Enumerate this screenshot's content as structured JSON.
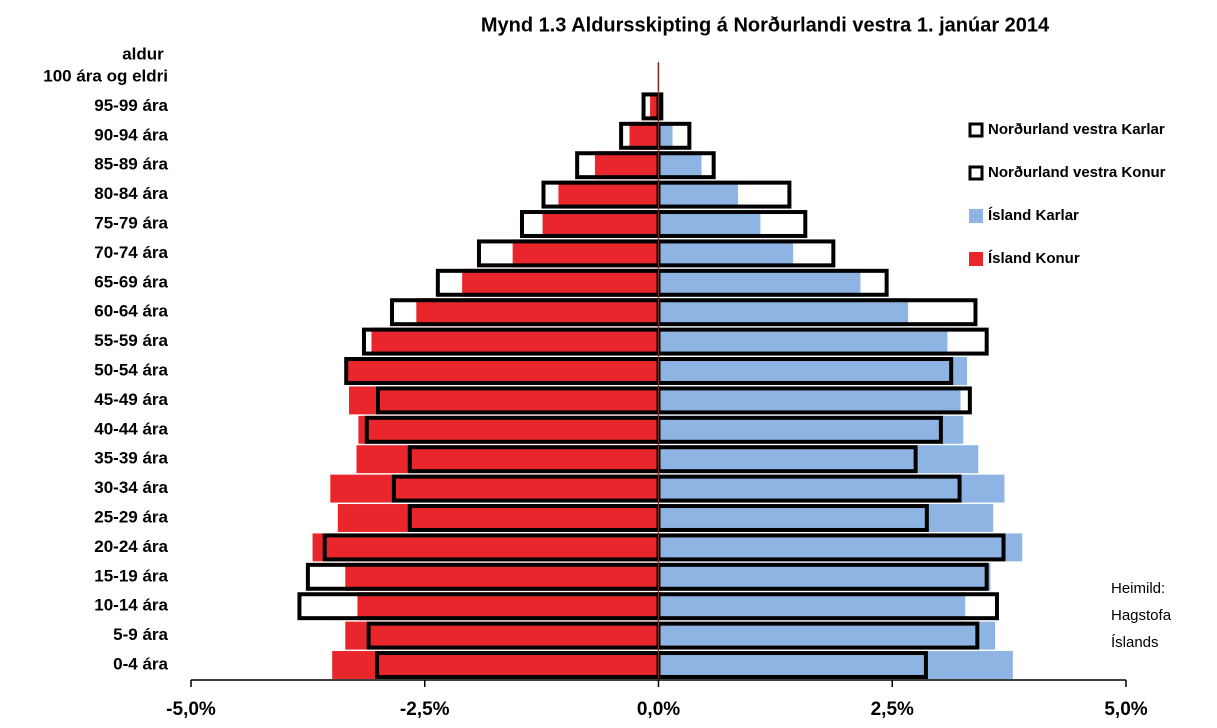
{
  "chart_data": {
    "type": "bar",
    "orientation": "horizontal",
    "title": "Mynd 1.3 Aldursskipting á Norðurlandi vestra 1. janúar 2014",
    "y_label": "aldur",
    "annotation": [
      "Heimild:",
      "Hagstofa",
      "Íslands"
    ],
    "categories": [
      "0-4 ára",
      "5-9 ára",
      "10-14 ára",
      "15-19 ára",
      "20-24 ára",
      "25-29 ára",
      "30-34 ára",
      "35-39 ára",
      "40-44 ára",
      "45-49 ára",
      "50-54 ára",
      "55-59 ára",
      "60-64 ára",
      "65-69 ára",
      "70-74 ára",
      "75-79 ára",
      "80-84 ára",
      "85-89 ára",
      "90-94 ára",
      "95-99 ára",
      "100 ára og eldri"
    ],
    "series": [
      {
        "name": "Norðurland vestra Karlar",
        "color": "#000000",
        "outline": true,
        "values": [
          2.86,
          3.41,
          3.62,
          3.51,
          3.69,
          2.87,
          3.22,
          2.75,
          3.02,
          3.33,
          3.13,
          3.51,
          3.39,
          2.44,
          1.87,
          1.57,
          1.4,
          0.59,
          0.33,
          0.03,
          0
        ]
      },
      {
        "name": "Norðurland vestra Konur",
        "color": "#000000",
        "outline": true,
        "values": [
          -3.01,
          -3.1,
          -3.84,
          -3.75,
          -3.57,
          -2.66,
          -2.83,
          -2.66,
          -3.12,
          -3.0,
          -3.34,
          -3.15,
          -2.85,
          -2.36,
          -1.92,
          -1.46,
          -1.23,
          -0.87,
          -0.4,
          -0.16,
          0
        ]
      },
      {
        "name": "Ísland Karlar",
        "color": "#8db4e2",
        "values": [
          3.79,
          3.6,
          3.28,
          3.55,
          3.89,
          3.58,
          3.7,
          3.42,
          3.26,
          3.23,
          3.3,
          3.09,
          2.67,
          2.16,
          1.44,
          1.09,
          0.85,
          0.46,
          0.15,
          0.04,
          0.01
        ]
      },
      {
        "name": "Ísland Konur",
        "color": "#e8262b",
        "values": [
          -3.49,
          -3.35,
          -3.22,
          -3.35,
          -3.7,
          -3.43,
          -3.51,
          -3.23,
          -3.21,
          -3.31,
          -3.34,
          -3.07,
          -2.59,
          -2.1,
          -1.56,
          -1.24,
          -1.07,
          -0.68,
          -0.31,
          -0.09,
          -0.01
        ]
      }
    ],
    "xlim": [
      -5,
      5
    ],
    "xticks": [
      {
        "value": -5,
        "label": "-5,0%"
      },
      {
        "value": -2.5,
        "label": "-2,5%"
      },
      {
        "value": 0,
        "label": "0,0%"
      },
      {
        "value": 2.5,
        "label": "2,5%"
      },
      {
        "value": 5,
        "label": "5,0%"
      }
    ],
    "legend": "right"
  }
}
